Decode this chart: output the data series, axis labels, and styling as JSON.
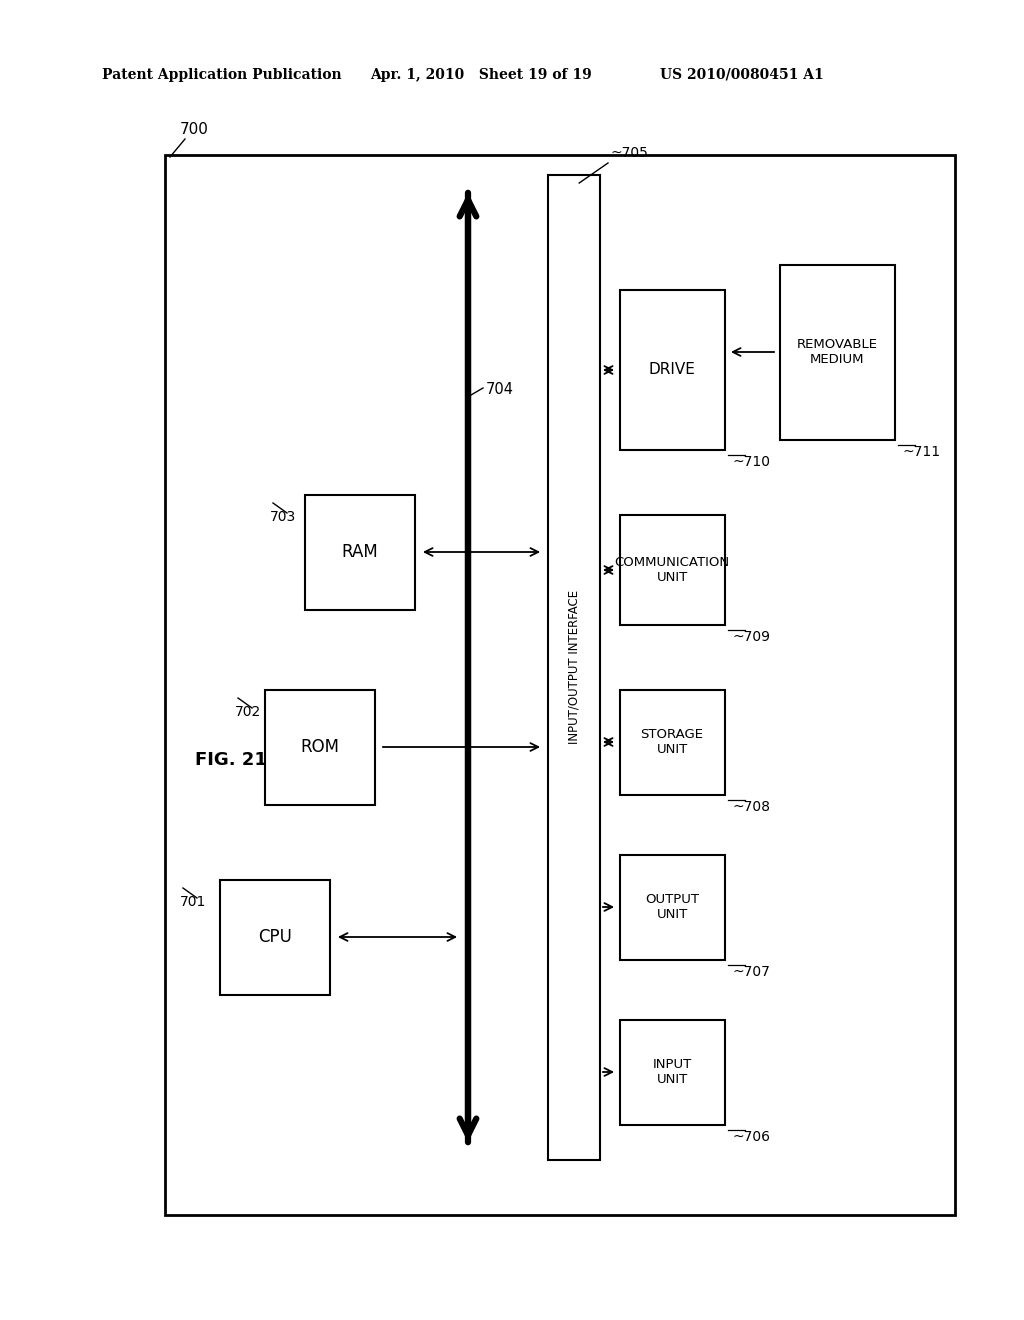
{
  "fig_label": "FIG. 21",
  "header_left": "Patent Application Publication",
  "header_mid": "Apr. 1, 2010   Sheet 19 of 19",
  "header_right": "US 2010/0080451 A1",
  "bg_color": "#ffffff"
}
